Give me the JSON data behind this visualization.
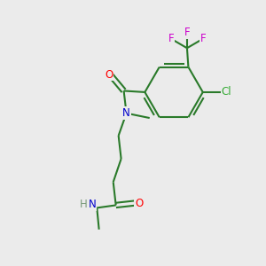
{
  "background_color": "#ebebeb",
  "bond_color": "#2a7a2a",
  "atom_colors": {
    "O": "#ff0000",
    "N": "#0000cc",
    "Cl": "#33aa33",
    "F": "#cc00cc",
    "H": "#7a9a7a",
    "C": "#2a7a2a"
  },
  "figsize": [
    3.0,
    3.0
  ],
  "dpi": 100
}
